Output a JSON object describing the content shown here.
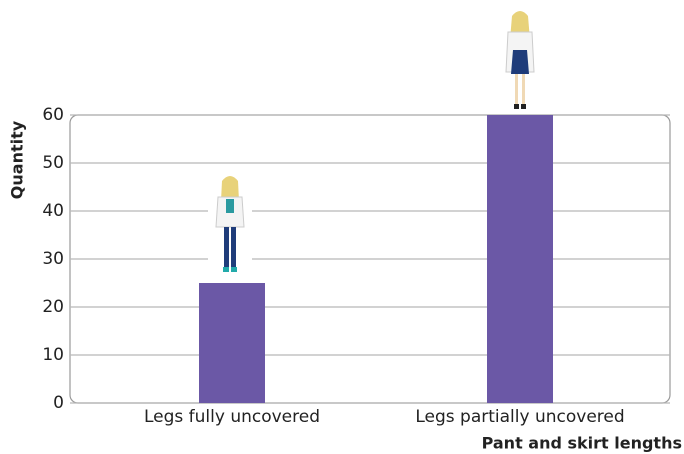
{
  "chart_data": {
    "type": "bar",
    "x_label": "Pant and skirt lengths",
    "y_label": "Quantity",
    "categories": [
      "Legs fully uncovered",
      "Legs partially uncovered"
    ],
    "values": [
      25,
      60
    ],
    "color": "#6b58a6",
    "ylim": [
      0,
      60
    ],
    "yticks": [
      0,
      10,
      20,
      30,
      40,
      50,
      60
    ],
    "grid": true
  }
}
